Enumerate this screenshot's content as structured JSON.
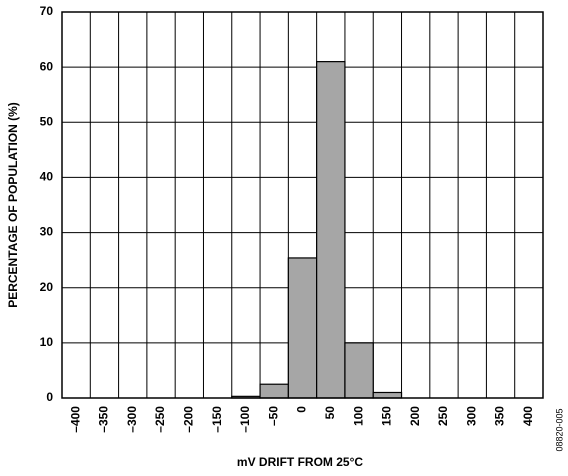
{
  "chart_data": {
    "type": "bar",
    "xlabel": "mV DRIFT FROM 25°C",
    "ylabel": "PERCENTAGE OF POPULATION (%)",
    "note": "08820-005",
    "categories": [
      "–400",
      "–350",
      "–300",
      "–250",
      "–200",
      "–150",
      "–100",
      "–50",
      "0",
      "50",
      "100",
      "150",
      "200",
      "250",
      "300",
      "350",
      "400"
    ],
    "values": [
      0,
      0,
      0,
      0,
      0,
      0,
      0.3,
      2.5,
      25.4,
      61,
      10,
      1,
      0,
      0,
      0,
      0,
      0
    ],
    "color": "#a6a6a6",
    "ylim": [
      0,
      70
    ],
    "yticks": [
      0,
      10,
      20,
      30,
      40,
      50,
      60,
      70
    ],
    "grid": true
  }
}
